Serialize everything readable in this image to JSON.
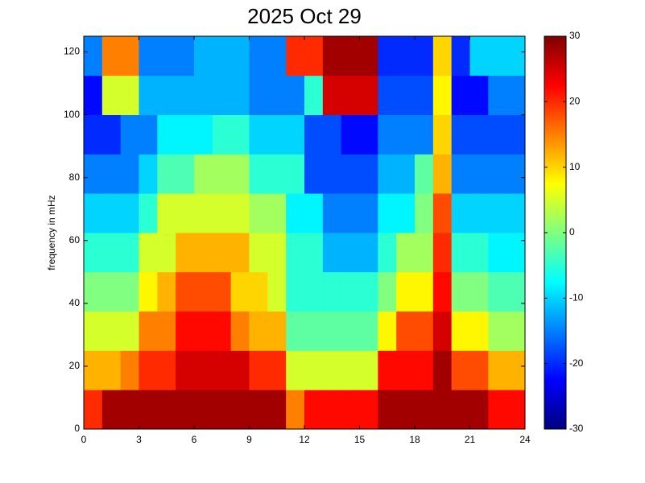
{
  "chart_data": {
    "type": "heatmap",
    "title": "2025 Oct 29",
    "ylabel": "frequency in mHz",
    "colormap": "jet",
    "xbins": [
      0,
      1,
      2,
      3,
      4,
      5,
      6,
      7,
      8,
      9,
      10,
      11,
      12,
      13,
      14,
      15,
      16,
      17,
      18,
      19,
      20,
      21,
      22,
      23,
      24
    ],
    "ybins": [
      0,
      12.5,
      25,
      37.5,
      50,
      62.5,
      75,
      87.5,
      100,
      112.5,
      125
    ],
    "values": [
      [
        20,
        28,
        28,
        28,
        28,
        28,
        28,
        28,
        28,
        28,
        28,
        15,
        22,
        22,
        22,
        22,
        28,
        28,
        28,
        28,
        28,
        28,
        22,
        22
      ],
      [
        12,
        12,
        15,
        20,
        20,
        25,
        25,
        25,
        25,
        20,
        20,
        5,
        5,
        5,
        5,
        5,
        22,
        22,
        22,
        28,
        18,
        18,
        12,
        12
      ],
      [
        5,
        5,
        5,
        15,
        15,
        22,
        22,
        22,
        15,
        12,
        12,
        -2,
        -2,
        -2,
        -2,
        -2,
        8,
        18,
        18,
        25,
        8,
        8,
        2,
        2
      ],
      [
        0,
        0,
        0,
        8,
        12,
        18,
        18,
        18,
        10,
        10,
        5,
        -5,
        -5,
        -5,
        -5,
        -5,
        0,
        8,
        8,
        22,
        0,
        0,
        -3,
        -3
      ],
      [
        -5,
        -5,
        -5,
        5,
        5,
        12,
        12,
        12,
        12,
        5,
        5,
        -5,
        -5,
        -12,
        -12,
        -12,
        -5,
        2,
        2,
        20,
        -5,
        -5,
        -8,
        -8
      ],
      [
        -10,
        -10,
        -10,
        -5,
        5,
        5,
        5,
        5,
        5,
        2,
        2,
        -8,
        -8,
        -15,
        -15,
        -15,
        -8,
        -8,
        0,
        18,
        -10,
        -10,
        -10,
        -10
      ],
      [
        -15,
        -15,
        -15,
        -10,
        -3,
        -3,
        2,
        2,
        2,
        -5,
        -5,
        -5,
        -18,
        -18,
        -18,
        -18,
        -12,
        -12,
        -2,
        12,
        -15,
        -15,
        -15,
        -15
      ],
      [
        -20,
        -20,
        -15,
        -15,
        -8,
        -8,
        -8,
        -5,
        -5,
        -10,
        -10,
        -10,
        -18,
        -18,
        -22,
        -22,
        -15,
        -15,
        -15,
        10,
        -18,
        -18,
        -18,
        -18
      ],
      [
        -22,
        5,
        5,
        -12,
        -12,
        -12,
        -12,
        -12,
        -12,
        -15,
        -15,
        -15,
        -5,
        25,
        25,
        25,
        -18,
        -18,
        -18,
        8,
        -22,
        -22,
        -15,
        -15
      ],
      [
        -15,
        15,
        15,
        -15,
        -15,
        -15,
        -12,
        -12,
        -12,
        -15,
        -15,
        20,
        20,
        28,
        28,
        28,
        -20,
        -20,
        -20,
        10,
        -20,
        -10,
        -10,
        -10
      ]
    ],
    "xlim": [
      0,
      24
    ],
    "xticks": [
      0,
      3,
      6,
      9,
      12,
      15,
      18,
      21,
      24
    ],
    "ylim": [
      0,
      125
    ],
    "yticks": [
      0,
      20,
      40,
      60,
      80,
      100,
      120
    ],
    "clim": [
      -30,
      30
    ],
    "cticks": [
      -30,
      -20,
      -10,
      0,
      10,
      20,
      30
    ]
  }
}
